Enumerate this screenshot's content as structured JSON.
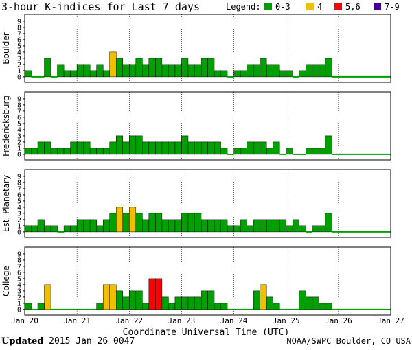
{
  "chart_data": {
    "type": "bar",
    "title": "3-hour K-indices for Last 7 days",
    "legend": {
      "label": "Legend:",
      "entries": [
        {
          "label": "0-3",
          "color": "#00a000"
        },
        {
          "label": "4",
          "color": "#f0c000"
        },
        {
          "label": "5,6",
          "color": "#ff0000"
        },
        {
          "label": "7-9",
          "color": "#400090"
        }
      ]
    },
    "xlabel": "Coordinate Universal Time (UTC)",
    "x_ticks": [
      "Jan 20",
      "Jan 21",
      "Jan 22",
      "Jan 23",
      "Jan 24",
      "Jan 25",
      "Jan 26",
      "Jan 27"
    ],
    "y_ticks": [
      "0",
      "1",
      "2",
      "3",
      "4",
      "5",
      "6",
      "7",
      "8",
      "9"
    ],
    "ylim": [
      0,
      9
    ],
    "intervals_per_day": 8,
    "days": 7,
    "series": [
      {
        "name": "Boulder",
        "values": [
          1,
          0,
          0,
          3,
          0,
          2,
          1,
          1,
          2,
          2,
          1,
          2,
          1,
          4,
          3,
          2,
          2,
          3,
          2,
          3,
          3,
          2,
          2,
          2,
          3,
          2,
          2,
          3,
          3,
          1,
          1,
          0,
          1,
          1,
          2,
          2,
          3,
          2,
          2,
          1,
          1,
          0,
          1,
          2,
          2,
          2,
          3
        ]
      },
      {
        "name": "Fredericksburg",
        "values": [
          1,
          1,
          2,
          2,
          1,
          1,
          1,
          2,
          2,
          2,
          1,
          1,
          1,
          2,
          3,
          2,
          3,
          3,
          2,
          2,
          2,
          2,
          2,
          2,
          3,
          2,
          2,
          2,
          2,
          2,
          1,
          0,
          1,
          1,
          2,
          2,
          2,
          1,
          2,
          0,
          1,
          0,
          0,
          1,
          1,
          1,
          3
        ]
      },
      {
        "name": "Est. Planetary",
        "values": [
          1,
          1,
          2,
          1,
          1,
          0,
          1,
          1,
          2,
          2,
          2,
          1,
          2,
          3,
          4,
          3,
          4,
          3,
          2,
          3,
          3,
          2,
          2,
          2,
          3,
          3,
          3,
          2,
          2,
          2,
          2,
          1,
          1,
          2,
          1,
          2,
          2,
          2,
          2,
          2,
          1,
          2,
          1,
          0,
          1,
          1,
          3
        ]
      },
      {
        "name": "College",
        "values": [
          1,
          0,
          1,
          4,
          0,
          0,
          0,
          0,
          0,
          0,
          0,
          1,
          4,
          4,
          3,
          2,
          3,
          3,
          1,
          5,
          5,
          2,
          1,
          2,
          2,
          2,
          2,
          3,
          3,
          1,
          1,
          0,
          0,
          0,
          0,
          3,
          4,
          2,
          1,
          0,
          0,
          0,
          3,
          2,
          2,
          1,
          1
        ]
      }
    ]
  },
  "footer": {
    "updated_label": "Updated",
    "updated_value": " 2015 Jan 26 0047",
    "source": "NOAA/SWPC Boulder, CO USA"
  }
}
